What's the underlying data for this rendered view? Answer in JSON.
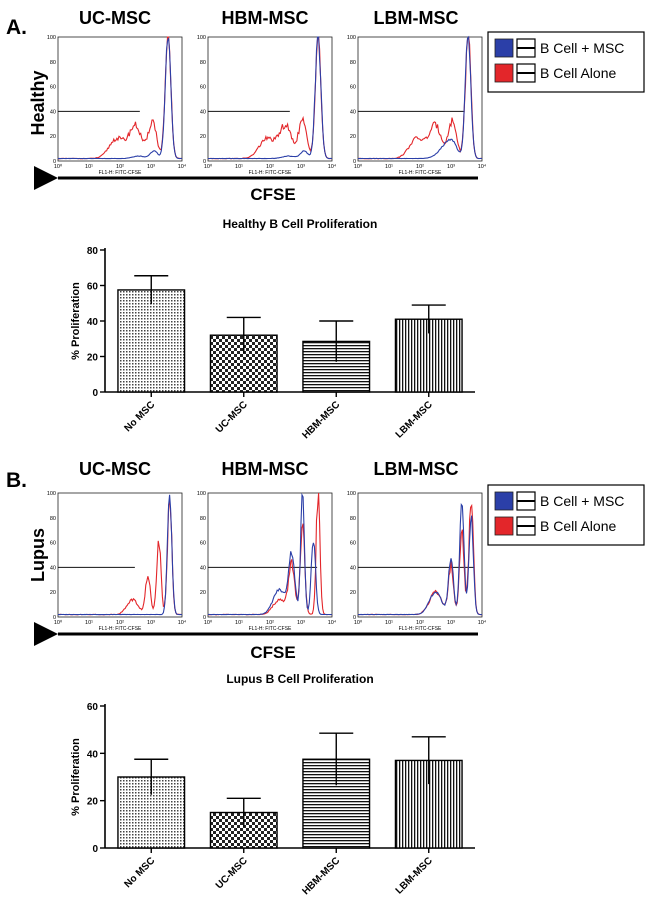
{
  "panels": [
    {
      "letter": "A.",
      "row_label": "Healthy",
      "cfse_label": "CFSE",
      "samples": [
        {
          "title": "UC-MSC",
          "overlay": 16
        },
        {
          "title": "HBM-MSC",
          "overlay": 16
        },
        {
          "title": "LBM-MSC",
          "overlay": 36
        }
      ],
      "legend": [
        {
          "label": "B Cell + MSC",
          "color": "#2b3fa8"
        },
        {
          "label": "B Cell Alone",
          "color": "#e3262a"
        }
      ]
    },
    {
      "letter": "B.",
      "row_label": "Lupus",
      "cfse_label": "CFSE",
      "samples": [
        {
          "title": "UC-MSC",
          "overlay": 12
        },
        {
          "title": "HBM-MSC",
          "overlay": 38
        },
        {
          "title": "LBM-MSC",
          "overlay": 44
        }
      ],
      "legend": [
        {
          "label": "B Cell + MSC",
          "color": "#2b3fa8"
        },
        {
          "label": "B Cell Alone",
          "color": "#e3262a"
        }
      ]
    }
  ],
  "histogram_axis": {
    "x_label": "FL1-H: FITC-CFSE",
    "y_ticks": [
      "0",
      "20",
      "40",
      "60",
      "80",
      "100"
    ],
    "x_ticks": [
      "10⁰",
      "10¹",
      "10²",
      "10³",
      "10⁴"
    ],
    "gate_level": 40
  },
  "chart_data": [
    {
      "type": "bar",
      "title": "Healthy B Cell Proliferation",
      "ylabel": "% Proliferation",
      "xlabel": "",
      "categories": [
        "No MSC",
        "UC-MSC",
        "HBM-MSC",
        "LBM-MSC"
      ],
      "values": [
        57.5,
        32,
        28.5,
        41
      ],
      "errors": [
        8,
        10,
        11.5,
        8
      ],
      "patterns": [
        "dots",
        "checker",
        "hlines",
        "vlines"
      ],
      "ylim": [
        0,
        80
      ],
      "yticks": [
        0,
        20,
        40,
        60,
        80
      ]
    },
    {
      "type": "bar",
      "title": "Lupus B Cell Proliferation",
      "ylabel": "% Proliferation",
      "xlabel": "",
      "categories": [
        "No MSC",
        "UC-MSC",
        "HBM-MSC",
        "LBM-MSC"
      ],
      "values": [
        30,
        15,
        37.5,
        37
      ],
      "errors": [
        7.5,
        6,
        11,
        10
      ],
      "patterns": [
        "dots",
        "checker",
        "hlines",
        "vlines"
      ],
      "ylim": [
        0,
        60
      ],
      "yticks": [
        0,
        20,
        40,
        60
      ]
    }
  ]
}
